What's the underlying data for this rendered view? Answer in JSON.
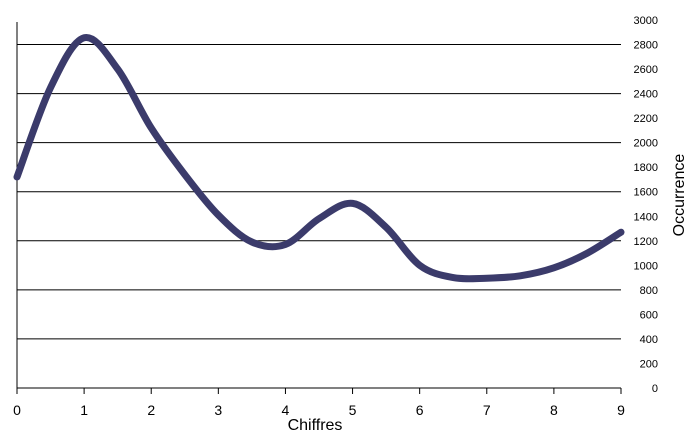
{
  "chart_data": {
    "type": "line",
    "title": "",
    "xlabel": "Chiffres",
    "ylabel": "Occurrence",
    "xlim": [
      0,
      9
    ],
    "ylim": [
      0,
      3000
    ],
    "y_axis_side": "right",
    "grid": "horizontal-major",
    "legend": "none",
    "x_ticks": [
      "0",
      "1",
      "2",
      "3",
      "4",
      "5",
      "6",
      "7",
      "8",
      "9"
    ],
    "y_ticks": [
      "0",
      "200",
      "400",
      "600",
      "800",
      "1000",
      "1200",
      "1400",
      "1600",
      "1800",
      "2000",
      "2200",
      "2400",
      "2600",
      "2800",
      "3000"
    ],
    "y_gridlines": [
      0,
      400,
      800,
      1200,
      1600,
      2000,
      2400,
      2800
    ],
    "series": [
      {
        "color": "#3b3b6b",
        "x": [
          0,
          0.5,
          1,
          1.5,
          2,
          2.5,
          3,
          3.5,
          4,
          4.5,
          5,
          5.5,
          6,
          6.5,
          7,
          7.5,
          8,
          8.5,
          9
        ],
        "y": [
          1720,
          2450,
          2855,
          2600,
          2120,
          1740,
          1410,
          1190,
          1170,
          1380,
          1505,
          1310,
          1000,
          900,
          895,
          915,
          980,
          1100,
          1270
        ]
      }
    ]
  }
}
